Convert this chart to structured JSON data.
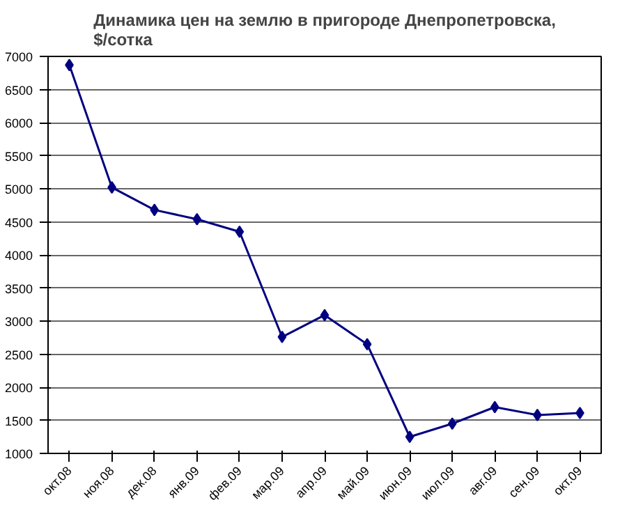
{
  "chart_data": {
    "type": "line",
    "title": "Динамика цен на землю в пригороде Днепропетровска, $/сотка",
    "categories": [
      "окт.08",
      "ноя.08",
      "дек.08",
      "янв.09",
      "фев.09",
      "мар.09",
      "апр.09",
      "май.09",
      "июн.09",
      "июл.09",
      "авг.09",
      "сен.09",
      "окт.09"
    ],
    "series": [
      {
        "color": "#000080",
        "values": [
          6870,
          5020,
          4680,
          4540,
          4350,
          2760,
          3090,
          2650,
          1250,
          1450,
          1700,
          1580,
          1610
        ]
      }
    ],
    "ylim": [
      1000,
      7000
    ],
    "yticks": [
      1000,
      1500,
      2000,
      2500,
      3000,
      3500,
      4000,
      4500,
      5000,
      5500,
      6000,
      6500,
      7000
    ],
    "grid": "y",
    "marker": "diamond",
    "line_style": "solid"
  }
}
